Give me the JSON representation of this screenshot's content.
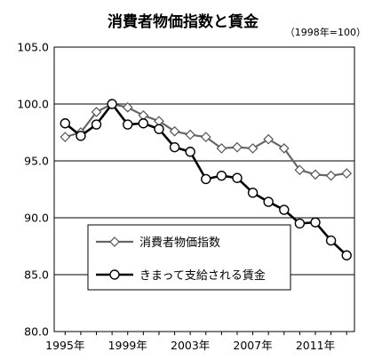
{
  "chart_data": {
    "type": "line",
    "title": "消費者物価指数と賃金",
    "subtitle": "（1998年=100）",
    "xlabel": "",
    "ylabel": "",
    "ylim": [
      80.0,
      105.0
    ],
    "y_ticks": [
      "80.0",
      "85.0",
      "90.0",
      "95.0",
      "100.0",
      "105.0"
    ],
    "x_tick_labels": [
      "1995年",
      "1999年",
      "2003年",
      "2007年",
      "2011年"
    ],
    "x_tick_years": [
      1995,
      1999,
      2003,
      2007,
      2011
    ],
    "x": [
      1995,
      1996,
      1997,
      1998,
      1999,
      2000,
      2001,
      2002,
      2003,
      2004,
      2005,
      2006,
      2007,
      2008,
      2009,
      2010,
      2011,
      2012,
      2013
    ],
    "grid": "horizontal",
    "legend_position": "bottom-left inside plot",
    "series": [
      {
        "name": "消費者物価指数",
        "marker": "diamond",
        "color": "#666666",
        "values": [
          97.1,
          97.5,
          99.3,
          100.0,
          99.7,
          99.0,
          98.5,
          97.6,
          97.3,
          97.1,
          96.1,
          96.2,
          96.1,
          96.9,
          96.1,
          94.2,
          93.8,
          93.7,
          93.9
        ]
      },
      {
        "name": "きまって支給される賃金",
        "marker": "circle",
        "color": "#000000",
        "values": [
          98.3,
          97.2,
          98.2,
          100.0,
          98.2,
          98.3,
          97.8,
          96.2,
          95.8,
          93.4,
          93.7,
          93.5,
          92.2,
          91.4,
          90.7,
          89.5,
          89.6,
          88.0,
          86.7
        ]
      }
    ]
  }
}
